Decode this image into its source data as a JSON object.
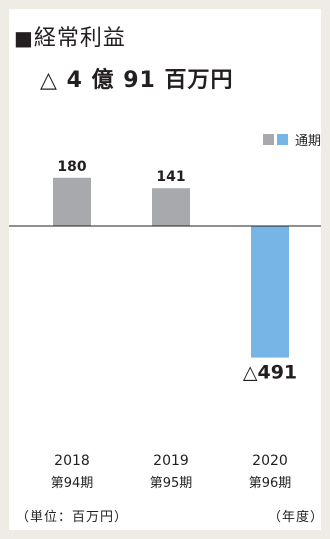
{
  "header": {
    "title_marker": "■",
    "title": "経常利益",
    "headline": "△ 4 億 91 百万円"
  },
  "legend": {
    "label": "通期",
    "colors": [
      "#a7a9ac",
      "#76b5e5"
    ]
  },
  "footer": {
    "unit": "（単位：百万円）",
    "axis_unit": "（年度）"
  },
  "chart_data": {
    "type": "bar",
    "categories": [
      "2018",
      "2019",
      "2020"
    ],
    "sublabels": [
      "第94期",
      "第95期",
      "第96期"
    ],
    "values": [
      180,
      141,
      -491
    ],
    "value_labels": [
      "180",
      "141",
      "△491"
    ],
    "colors": [
      "#a7a9ac",
      "#a7a9ac",
      "#76b5e5"
    ],
    "legend": [
      "通期"
    ],
    "legend_position": "top-right"
  }
}
